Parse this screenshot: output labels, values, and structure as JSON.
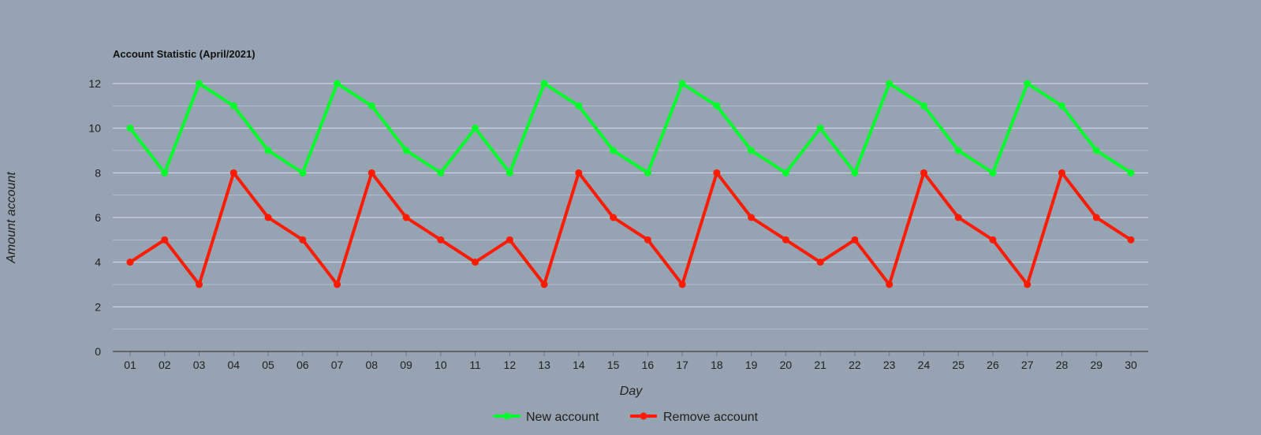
{
  "chart_data": {
    "type": "line",
    "title": "Account Statistic (April/2021)",
    "xlabel": "Day",
    "ylabel": "Amount account",
    "categories": [
      "01",
      "02",
      "03",
      "04",
      "05",
      "06",
      "07",
      "08",
      "09",
      "10",
      "11",
      "12",
      "13",
      "14",
      "15",
      "16",
      "17",
      "18",
      "19",
      "20",
      "21",
      "22",
      "23",
      "24",
      "25",
      "26",
      "27",
      "28",
      "29",
      "30"
    ],
    "ylim": [
      0,
      12
    ],
    "yticks": [
      0,
      2,
      4,
      6,
      8,
      10,
      12
    ],
    "grid": true,
    "legend_position": "bottom",
    "series": [
      {
        "name": "New account",
        "color": "#00ff2a",
        "values": [
          10,
          8,
          12,
          11,
          9,
          8,
          12,
          11,
          9,
          8,
          10,
          8,
          12,
          11,
          9,
          8,
          12,
          11,
          9,
          8,
          10,
          8,
          12,
          11,
          9,
          8,
          12,
          11,
          9,
          8
        ]
      },
      {
        "name": "Remove account",
        "color": "#ff1a00",
        "values": [
          4,
          5,
          3,
          8,
          6,
          5,
          3,
          8,
          6,
          5,
          4,
          5,
          3,
          8,
          6,
          5,
          3,
          8,
          6,
          5,
          4,
          5,
          3,
          8,
          6,
          5,
          3,
          8,
          6,
          5
        ]
      }
    ]
  }
}
